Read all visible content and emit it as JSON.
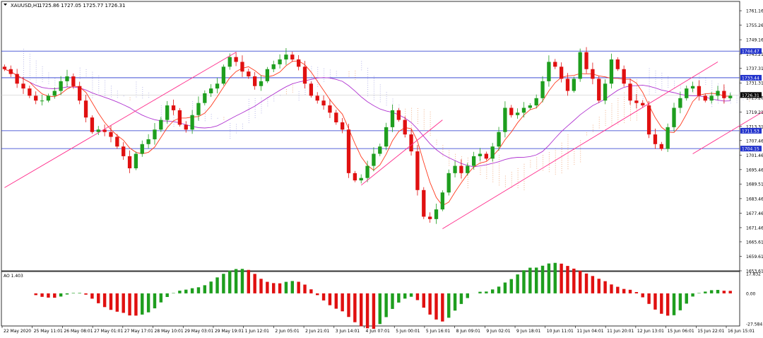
{
  "header": {
    "symbol": "XAUUSD,H1",
    "ohlc": "1725.86 1727.05 1725.77 1726.31"
  },
  "colors": {
    "bull": "#1e9e1e",
    "bear": "#e01010",
    "hline": "#2233cc",
    "trend": "#ff2a8a",
    "ma_fast": "#ff3b1f",
    "ma_slow": "#b033d0",
    "cloud_a": "#f0b088",
    "cloud_b": "#b8b8e8",
    "price_line": "#cccccc"
  },
  "chart_data": {
    "type": "candlestick",
    "symbol": "XAUUSD",
    "timeframe": "H1",
    "ylim": [
      1653.61,
      1765
    ],
    "yticks": [
      "1761.16",
      "1755.26",
      "1749.16",
      "1743.21",
      "1737.31",
      "1731.31",
      "1725.26",
      "1719.21",
      "1713.31",
      "1707.46",
      "1701.46",
      "1695.46",
      "1689.51",
      "1683.46",
      "1677.46",
      "1671.46",
      "1665.61",
      "1659.61",
      "1653.61"
    ],
    "xticks": [
      "22 May 2020",
      "25 May 11:01",
      "26 May 08:01",
      "27 May 01:01",
      "27 May 17:01",
      "28 May 10:01",
      "29 May 03:01",
      "29 May 19:01",
      "1 Jun 12:01",
      "2 Jun 05:01",
      "2 Jun 21:01",
      "3 Jun 14:01",
      "4 Jun 07:01",
      "5 Jun 00:01",
      "5 Jun 16:01",
      "8 Jun 09:01",
      "9 Jun 02:01",
      "9 Jun 18:01",
      "10 Jun 11:01",
      "11 Jun 04:01",
      "11 Jun 20:01",
      "12 Jun 13:01",
      "15 Jun 06:01",
      "15 Jun 22:01",
      "16 Jun 15:01"
    ],
    "horizontal_levels": [
      1744.47,
      1733.44,
      1711.53,
      1704.15
    ],
    "current_price": "1726.31",
    "trendlines": [
      {
        "from": [
          0,
          1688
        ],
        "to": [
          37,
          1744
        ]
      },
      {
        "from": [
          57,
          1689
        ],
        "to": [
          70,
          1716
        ]
      },
      {
        "from": [
          70,
          1671
        ],
        "to": [
          114,
          1740
        ]
      },
      {
        "from": [
          110,
          1702
        ],
        "to": [
          130,
          1733
        ]
      }
    ],
    "close": [
      1737,
      1735,
      1731,
      1729,
      1726,
      1724,
      1724,
      1726,
      1728,
      1732,
      1734,
      1730,
      1724,
      1717,
      1711,
      1712,
      1711,
      1709,
      1705,
      1701,
      1696,
      1702,
      1706,
      1708,
      1712,
      1716,
      1722,
      1720,
      1714,
      1712,
      1718,
      1723,
      1727,
      1729,
      1731,
      1738,
      1742,
      1740,
      1736,
      1734,
      1730,
      1732,
      1737,
      1739,
      1741,
      1743,
      1741,
      1738,
      1731,
      1726,
      1724,
      1722,
      1719,
      1715,
      1712,
      1694,
      1691,
      1692,
      1697,
      1702,
      1705,
      1713,
      1720,
      1716,
      1710,
      1703,
      1687,
      1676,
      1675,
      1679,
      1686,
      1694,
      1697,
      1694,
      1697,
      1701,
      1702,
      1700,
      1705,
      1711,
      1721,
      1718,
      1719,
      1721,
      1722,
      1725,
      1732,
      1740,
      1738,
      1733,
      1728,
      1733,
      1744,
      1737,
      1733,
      1724,
      1731,
      1741,
      1737,
      1731,
      1724,
      1723,
      1722,
      1710,
      1706,
      1704,
      1713,
      1721,
      1725,
      1729,
      1730,
      1726,
      1724,
      1726,
      1728,
      1725,
      1726
    ],
    "ao": {
      "label": "AO 1.403",
      "yticks": [
        "17.832",
        "0.00",
        "-27.584"
      ],
      "ylim": [
        -27.584,
        17.832
      ]
    }
  }
}
